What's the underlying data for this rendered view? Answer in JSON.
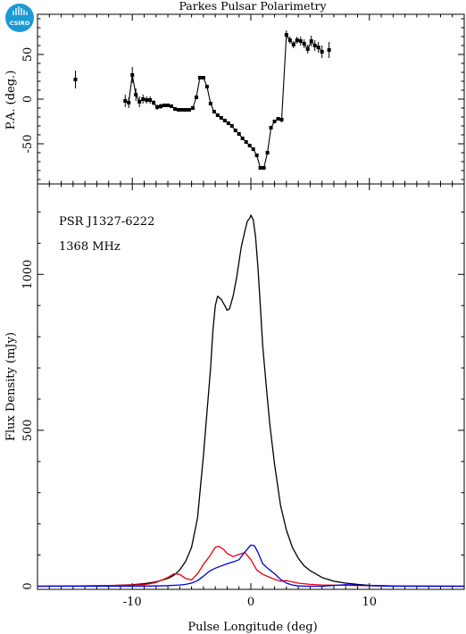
{
  "logo": {
    "text": "CSIRO",
    "color": "#1b9ad6"
  },
  "chart_data": [
    {
      "type": "scatter",
      "title": "Parkes Pulsar Polarimetry",
      "xlabel": "",
      "ylabel": "P.A. (deg.)",
      "xlim": [
        -18,
        18
      ],
      "ylim": [
        -95,
        95
      ],
      "yticks": [
        -50,
        0,
        50
      ],
      "grid": false,
      "pa_points": [
        {
          "x": -14.8,
          "y": 22,
          "err": 10
        },
        {
          "x": -10.6,
          "y": -2,
          "err": 7
        },
        {
          "x": -10.3,
          "y": -4,
          "err": 6
        },
        {
          "x": -10.0,
          "y": 27,
          "err": 9
        },
        {
          "x": -9.7,
          "y": 5,
          "err": 7
        },
        {
          "x": -9.4,
          "y": -3,
          "err": 6
        },
        {
          "x": -9.1,
          "y": 0,
          "err": 5
        },
        {
          "x": -8.8,
          "y": -1,
          "err": 4
        },
        {
          "x": -8.5,
          "y": -1,
          "err": 4
        },
        {
          "x": -8.2,
          "y": -4,
          "err": 3
        },
        {
          "x": -7.9,
          "y": -9,
          "err": 3
        },
        {
          "x": -7.6,
          "y": -8,
          "err": 3
        },
        {
          "x": -7.3,
          "y": -7,
          "err": 2
        },
        {
          "x": -7.0,
          "y": -7,
          "err": 2
        },
        {
          "x": -6.7,
          "y": -8,
          "err": 2
        },
        {
          "x": -6.4,
          "y": -11,
          "err": 2
        },
        {
          "x": -6.1,
          "y": -12,
          "err": 2
        },
        {
          "x": -5.8,
          "y": -12,
          "err": 2
        },
        {
          "x": -5.5,
          "y": -12,
          "err": 2
        },
        {
          "x": -5.2,
          "y": -12,
          "err": 2
        },
        {
          "x": -4.9,
          "y": -10,
          "err": 2
        },
        {
          "x": -4.6,
          "y": 2,
          "err": 2
        },
        {
          "x": -4.3,
          "y": 24,
          "err": 2
        },
        {
          "x": -4.0,
          "y": 24,
          "err": 2
        },
        {
          "x": -3.7,
          "y": 14,
          "err": 2
        },
        {
          "x": -3.4,
          "y": -5,
          "err": 2
        },
        {
          "x": -3.1,
          "y": -14,
          "err": 2
        },
        {
          "x": -2.8,
          "y": -18,
          "err": 1
        },
        {
          "x": -2.5,
          "y": -21,
          "err": 1
        },
        {
          "x": -2.2,
          "y": -24,
          "err": 1
        },
        {
          "x": -1.9,
          "y": -27,
          "err": 1
        },
        {
          "x": -1.6,
          "y": -30,
          "err": 1
        },
        {
          "x": -1.3,
          "y": -35,
          "err": 1
        },
        {
          "x": -1.0,
          "y": -39,
          "err": 1
        },
        {
          "x": -0.7,
          "y": -44,
          "err": 1
        },
        {
          "x": -0.4,
          "y": -48,
          "err": 1
        },
        {
          "x": -0.1,
          "y": -52,
          "err": 1
        },
        {
          "x": 0.2,
          "y": -56,
          "err": 1
        },
        {
          "x": 0.5,
          "y": -63,
          "err": 1
        },
        {
          "x": 0.8,
          "y": -77,
          "err": 1
        },
        {
          "x": 1.1,
          "y": -77,
          "err": 1
        },
        {
          "x": 1.4,
          "y": -60,
          "err": 1
        },
        {
          "x": 1.7,
          "y": -32,
          "err": 2
        },
        {
          "x": 2.0,
          "y": -25,
          "err": 2
        },
        {
          "x": 2.3,
          "y": -22,
          "err": 2
        },
        {
          "x": 2.6,
          "y": -23,
          "err": 3
        },
        {
          "x": 3.0,
          "y": 72,
          "err": 5
        },
        {
          "x": 3.3,
          "y": 66,
          "err": 4
        },
        {
          "x": 3.6,
          "y": 61,
          "err": 4
        },
        {
          "x": 3.9,
          "y": 66,
          "err": 4
        },
        {
          "x": 4.2,
          "y": 65,
          "err": 5
        },
        {
          "x": 4.5,
          "y": 62,
          "err": 5
        },
        {
          "x": 4.8,
          "y": 56,
          "err": 5
        },
        {
          "x": 5.1,
          "y": 65,
          "err": 6
        },
        {
          "x": 5.4,
          "y": 60,
          "err": 6
        },
        {
          "x": 5.7,
          "y": 58,
          "err": 6
        },
        {
          "x": 6.0,
          "y": 53,
          "err": 7
        },
        {
          "x": 6.6,
          "y": 55,
          "err": 9
        }
      ]
    },
    {
      "type": "line",
      "xlabel": "Pulse Longitude (deg)",
      "ylabel": "Flux Density (mJy)",
      "xlim": [
        -18,
        18
      ],
      "ylim": [
        -10,
        1290
      ],
      "xticks": [
        -10,
        0,
        10
      ],
      "yticks": [
        0,
        500,
        1000
      ],
      "grid": false,
      "annotations": [
        "PSR J1327-6222",
        "1368 MHz"
      ],
      "series": [
        {
          "color": "#000000",
          "x": [
            -18,
            -14,
            -12,
            -10,
            -9,
            -8,
            -7,
            -6.5,
            -6,
            -5.5,
            -5,
            -4.5,
            -4,
            -3.7,
            -3.4,
            -3.2,
            -3,
            -2.8,
            -2.5,
            -2.2,
            -2,
            -1.8,
            -1.5,
            -1.2,
            -1,
            -0.8,
            -0.5,
            -0.3,
            -0.1,
            0,
            0.2,
            0.4,
            0.6,
            0.8,
            1,
            1.3,
            1.6,
            2,
            2.5,
            3,
            3.5,
            4,
            4.5,
            5,
            6,
            7,
            8,
            9,
            10,
            12,
            14,
            18
          ],
          "y": [
            0,
            1,
            2,
            5,
            8,
            14,
            25,
            35,
            52,
            80,
            125,
            220,
            420,
            560,
            700,
            820,
            900,
            930,
            920,
            900,
            885,
            890,
            930,
            990,
            1040,
            1090,
            1140,
            1170,
            1180,
            1190,
            1175,
            1120,
            1020,
            900,
            770,
            640,
            520,
            390,
            260,
            180,
            125,
            90,
            65,
            50,
            28,
            16,
            10,
            6,
            3,
            1,
            0,
            0
          ]
        },
        {
          "color": "#e8000b",
          "x": [
            -18,
            -12,
            -9,
            -8,
            -7,
            -6.5,
            -6,
            -5.5,
            -5,
            -4.5,
            -4,
            -3.5,
            -3,
            -2.7,
            -2.3,
            -2,
            -1.5,
            -1,
            -0.5,
            0,
            0.5,
            1,
            1.5,
            2,
            2.5,
            3,
            3.5,
            4,
            5,
            6,
            8,
            10,
            12,
            18
          ],
          "y": [
            0,
            2,
            5,
            12,
            28,
            40,
            38,
            25,
            20,
            40,
            70,
            95,
            125,
            128,
            118,
            105,
            95,
            102,
            108,
            85,
            52,
            38,
            30,
            22,
            16,
            18,
            14,
            10,
            6,
            4,
            3,
            2,
            1,
            0
          ]
        },
        {
          "color": "#0000e0",
          "x": [
            -18,
            -12,
            -10,
            -8,
            -7,
            -6,
            -5.5,
            -5,
            -4.5,
            -4,
            -3.5,
            -3,
            -2.5,
            -2,
            -1.5,
            -1,
            -0.5,
            0,
            0.3,
            0.6,
            1,
            1.5,
            2,
            2.5,
            3,
            3.5,
            4,
            5,
            6,
            8,
            10,
            12,
            18
          ],
          "y": [
            0,
            0,
            0,
            1,
            2,
            4,
            6,
            10,
            18,
            32,
            48,
            58,
            65,
            72,
            78,
            85,
            110,
            132,
            130,
            108,
            72,
            55,
            40,
            22,
            10,
            4,
            1,
            0,
            0,
            5,
            2,
            0,
            0
          ]
        }
      ]
    }
  ]
}
